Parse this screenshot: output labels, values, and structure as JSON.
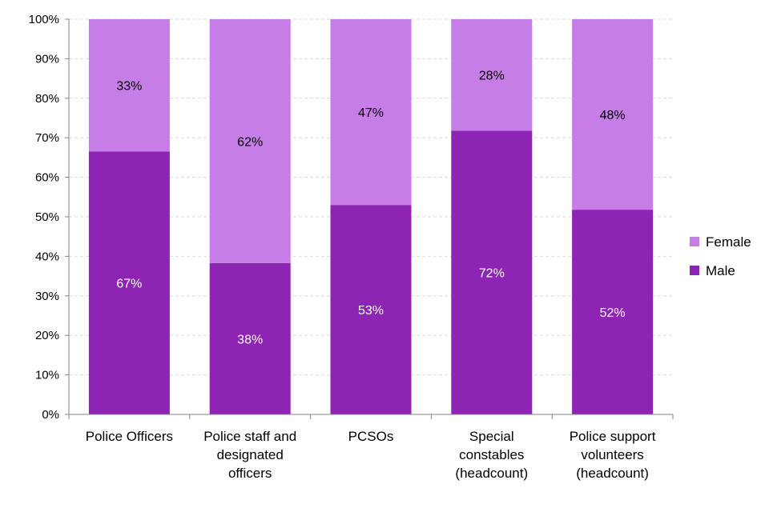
{
  "chart_data": {
    "type": "bar",
    "stacked": true,
    "title": "",
    "xlabel": "",
    "ylabel": "",
    "ylim": [
      0,
      100
    ],
    "yticks": [
      "0%",
      "10%",
      "20%",
      "30%",
      "40%",
      "50%",
      "60%",
      "70%",
      "80%",
      "90%",
      "100%"
    ],
    "grid": true,
    "legend_position": "right",
    "categories": [
      [
        "Police Officers"
      ],
      [
        "Police staff and",
        "designated",
        "officers"
      ],
      [
        "PCSOs"
      ],
      [
        "Special",
        "constables",
        "(headcount)"
      ],
      [
        "Police support",
        "volunteers",
        "(headcount)"
      ]
    ],
    "series": [
      {
        "name": "Male",
        "color": "#8e24b4",
        "label_color": "#ffffff",
        "values": [
          66.5,
          38.3,
          53,
          71.8,
          51.8
        ],
        "labels": [
          "67%",
          "38%",
          "53%",
          "72%",
          "52%"
        ]
      },
      {
        "name": "Female",
        "color": "#c67de8",
        "label_color": "#000000",
        "values": [
          33.5,
          61.7,
          47,
          28.2,
          48.2
        ],
        "labels": [
          "33%",
          "62%",
          "47%",
          "28%",
          "48%"
        ]
      }
    ],
    "legend_order": [
      "Female",
      "Male"
    ]
  }
}
